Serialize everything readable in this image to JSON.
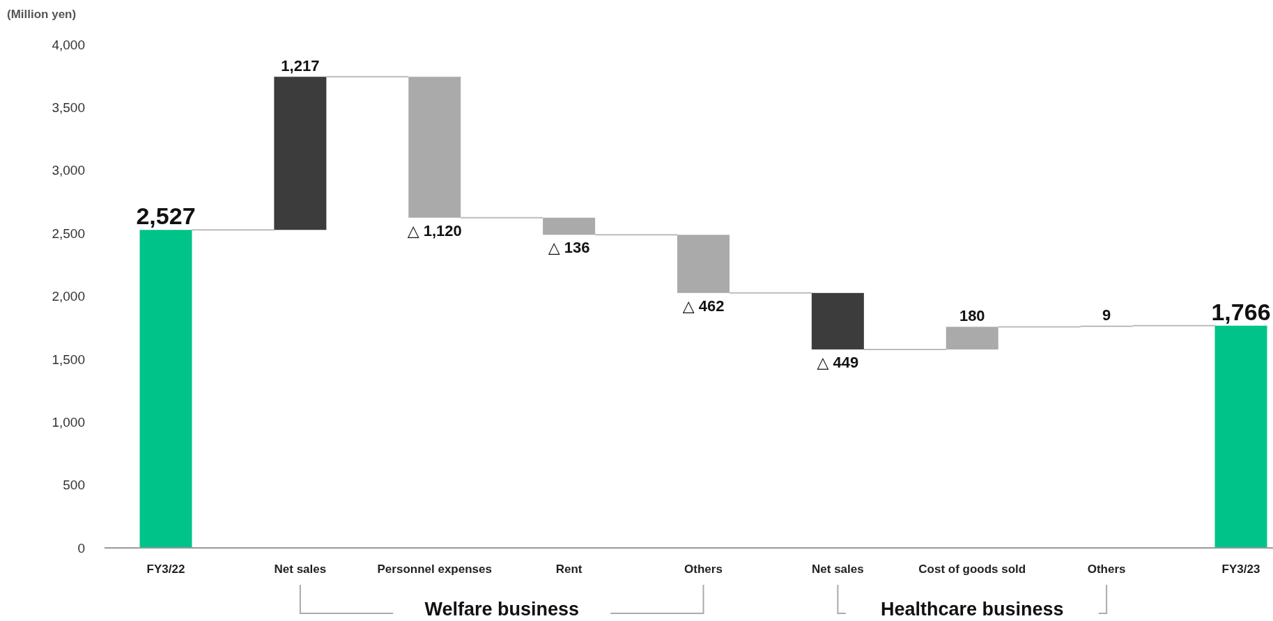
{
  "chart_data": {
    "type": "bar",
    "ylabel": "(Million yen)",
    "categories": [
      "FY3/22",
      "Net sales",
      "Personnel expenses",
      "Rent",
      "Others",
      "Net sales",
      "Cost of goods sold",
      "Others",
      "FY3/23"
    ],
    "values": [
      2527,
      1217,
      -1120,
      -136,
      -462,
      -449,
      180,
      9,
      1766
    ],
    "base": [
      0,
      2527,
      3744,
      2624,
      2488,
      2026,
      1577,
      1757,
      0
    ],
    "colors": [
      "#00c389",
      "#3c3c3c",
      "#aaaaaa",
      "#aaaaaa",
      "#aaaaaa",
      "#3c3c3c",
      "#aaaaaa",
      "#aaaaaa",
      "#00c389"
    ],
    "value_labels": [
      "2,527",
      "1,217",
      "△ 1,120",
      "△ 136",
      "△ 462",
      "△ 449",
      "180",
      "9",
      "1,766"
    ],
    "ylim": [
      0,
      4000
    ],
    "yticks": [
      0,
      500,
      {
        "value": 1000,
        "label": "1,000"
      },
      {
        "value": 1500,
        "label": "1,500"
      },
      {
        "value": 2000,
        "label": "2,000"
      },
      {
        "value": 2500,
        "label": "2,500"
      },
      {
        "value": 3000,
        "label": "3,000"
      },
      {
        "value": 3500,
        "label": "3,500"
      },
      {
        "value": 4000,
        "label": "4,000"
      }
    ],
    "grid": false,
    "annotations": [
      "Welfare business",
      "Healthcare business"
    ]
  }
}
